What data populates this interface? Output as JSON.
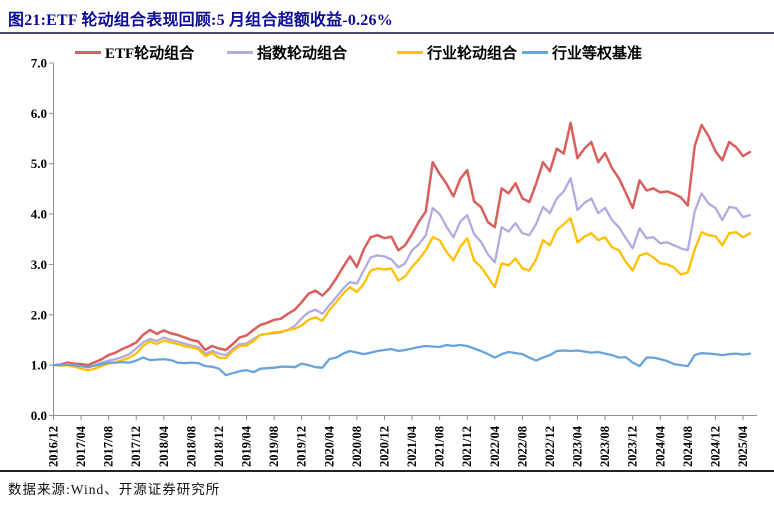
{
  "title": "图21:ETF 轮动组合表现回顾:5 月组合超额收益-0.26%",
  "source_note": "数据来源:Wind、开源证券研究所",
  "colors": {
    "title_blue": "#0B0B96",
    "rule_top": "#4A4A78",
    "rule_bottom": "#222222",
    "axis_gray": "#909090",
    "label_black": "#000000"
  },
  "chart_data": {
    "type": "line",
    "title": "",
    "xlabel": "",
    "ylabel": "",
    "grid": false,
    "legend_position": "top",
    "ylim": [
      0.0,
      7.0
    ],
    "y_tick_labels": [
      "0.0",
      "1.0",
      "2.0",
      "3.0",
      "4.0",
      "5.0",
      "6.0",
      "7.0"
    ],
    "x_start": "2016/12",
    "x_end": "2025/05",
    "months_total": 102,
    "x_tick_labels": [
      "2016/12",
      "2017/04",
      "2017/08",
      "2017/12",
      "2018/04",
      "2018/08",
      "2018/12",
      "2019/04",
      "2019/08",
      "2019/12",
      "2020/04",
      "2020/08",
      "2020/12",
      "2021/04",
      "2021/08",
      "2021/12",
      "2022/04",
      "2022/08",
      "2022/12",
      "2023/04",
      "2023/08",
      "2023/12",
      "2024/04",
      "2024/08",
      "2024/12",
      "2025/04"
    ],
    "series": [
      {
        "id": "etf-rotation",
        "name": "ETF轮动组合",
        "color": "#D95F5C",
        "width": 2.5,
        "values": [
          1.0,
          1.01,
          1.05,
          1.03,
          1.02,
          1.0,
          1.06,
          1.12,
          1.2,
          1.25,
          1.32,
          1.38,
          1.45,
          1.6,
          1.7,
          1.62,
          1.69,
          1.63,
          1.6,
          1.55,
          1.5,
          1.47,
          1.3,
          1.38,
          1.33,
          1.3,
          1.42,
          1.55,
          1.59,
          1.7,
          1.8,
          1.84,
          1.9,
          1.92,
          2.02,
          2.1,
          2.25,
          2.42,
          2.48,
          2.38,
          2.52,
          2.72,
          2.95,
          3.16,
          2.95,
          3.3,
          3.54,
          3.58,
          3.52,
          3.55,
          3.28,
          3.38,
          3.6,
          3.85,
          4.05,
          5.03,
          4.8,
          4.6,
          4.35,
          4.7,
          4.87,
          4.25,
          4.14,
          3.84,
          3.74,
          4.51,
          4.41,
          4.61,
          4.31,
          4.24,
          4.6,
          5.03,
          4.85,
          5.3,
          5.2,
          5.81,
          5.11,
          5.3,
          5.43,
          5.03,
          5.21,
          4.91,
          4.71,
          4.42,
          4.12,
          4.67,
          4.47,
          4.51,
          4.43,
          4.45,
          4.4,
          4.33,
          4.17,
          5.35,
          5.77,
          5.55,
          5.25,
          5.07,
          5.43,
          5.33,
          5.15,
          5.23
        ]
      },
      {
        "id": "index-rotation",
        "name": "指数轮动组合",
        "color": "#B0ACE0",
        "width": 2.3,
        "values": [
          1.0,
          1.0,
          1.02,
          1.0,
          0.98,
          0.96,
          1.0,
          1.05,
          1.09,
          1.12,
          1.16,
          1.22,
          1.33,
          1.45,
          1.52,
          1.48,
          1.55,
          1.5,
          1.47,
          1.43,
          1.39,
          1.36,
          1.22,
          1.28,
          1.23,
          1.2,
          1.32,
          1.42,
          1.43,
          1.52,
          1.6,
          1.62,
          1.63,
          1.65,
          1.7,
          1.78,
          1.93,
          2.05,
          2.1,
          2.02,
          2.19,
          2.35,
          2.52,
          2.65,
          2.62,
          2.88,
          3.14,
          3.18,
          3.16,
          3.1,
          2.94,
          3.02,
          3.28,
          3.4,
          3.58,
          4.12,
          4.0,
          3.75,
          3.54,
          3.85,
          3.98,
          3.6,
          3.45,
          3.2,
          3.04,
          3.74,
          3.65,
          3.82,
          3.62,
          3.58,
          3.8,
          4.14,
          4.02,
          4.31,
          4.45,
          4.71,
          4.08,
          4.22,
          4.31,
          4.02,
          4.12,
          3.88,
          3.74,
          3.52,
          3.32,
          3.72,
          3.52,
          3.54,
          3.42,
          3.44,
          3.38,
          3.32,
          3.28,
          4.05,
          4.41,
          4.21,
          4.12,
          3.88,
          4.14,
          4.12,
          3.94,
          3.98
        ]
      },
      {
        "id": "industry-rotation",
        "name": "行业轮动组合",
        "color": "#FFC000",
        "width": 2.3,
        "values": [
          1.0,
          0.99,
          1.0,
          0.97,
          0.93,
          0.9,
          0.93,
          0.98,
          1.03,
          1.06,
          1.1,
          1.15,
          1.23,
          1.38,
          1.47,
          1.42,
          1.49,
          1.45,
          1.42,
          1.38,
          1.35,
          1.32,
          1.18,
          1.24,
          1.15,
          1.14,
          1.28,
          1.38,
          1.39,
          1.48,
          1.6,
          1.62,
          1.65,
          1.66,
          1.7,
          1.72,
          1.79,
          1.9,
          1.95,
          1.88,
          2.09,
          2.25,
          2.42,
          2.55,
          2.45,
          2.62,
          2.88,
          2.92,
          2.9,
          2.92,
          2.68,
          2.76,
          2.95,
          3.1,
          3.28,
          3.54,
          3.48,
          3.25,
          3.08,
          3.35,
          3.52,
          3.08,
          2.95,
          2.75,
          2.55,
          3.02,
          2.98,
          3.12,
          2.92,
          2.88,
          3.1,
          3.48,
          3.38,
          3.68,
          3.8,
          3.92,
          3.44,
          3.55,
          3.62,
          3.48,
          3.54,
          3.34,
          3.28,
          3.05,
          2.88,
          3.18,
          3.22,
          3.14,
          3.02,
          3.0,
          2.94,
          2.8,
          2.84,
          3.3,
          3.64,
          3.58,
          3.56,
          3.38,
          3.62,
          3.64,
          3.54,
          3.62
        ]
      },
      {
        "id": "industry-equal-weight-benchmark",
        "name": "行业等权基准",
        "color": "#68A4DA",
        "width": 2.3,
        "values": [
          1.0,
          1.0,
          1.01,
          1.0,
          0.98,
          0.96,
          0.99,
          1.02,
          1.05,
          1.05,
          1.06,
          1.05,
          1.09,
          1.15,
          1.1,
          1.11,
          1.12,
          1.1,
          1.05,
          1.04,
          1.05,
          1.04,
          0.98,
          0.97,
          0.93,
          0.8,
          0.84,
          0.88,
          0.9,
          0.86,
          0.93,
          0.94,
          0.95,
          0.97,
          0.97,
          0.96,
          1.03,
          1.0,
          0.96,
          0.95,
          1.12,
          1.15,
          1.23,
          1.28,
          1.25,
          1.22,
          1.25,
          1.28,
          1.3,
          1.32,
          1.28,
          1.3,
          1.33,
          1.36,
          1.38,
          1.37,
          1.36,
          1.4,
          1.38,
          1.4,
          1.38,
          1.33,
          1.28,
          1.22,
          1.15,
          1.22,
          1.26,
          1.24,
          1.22,
          1.15,
          1.09,
          1.15,
          1.2,
          1.28,
          1.29,
          1.28,
          1.29,
          1.27,
          1.25,
          1.26,
          1.23,
          1.2,
          1.15,
          1.16,
          1.05,
          0.98,
          1.15,
          1.15,
          1.12,
          1.08,
          1.02,
          1.0,
          0.98,
          1.2,
          1.24,
          1.23,
          1.22,
          1.2,
          1.22,
          1.23,
          1.21,
          1.23
        ]
      }
    ]
  }
}
